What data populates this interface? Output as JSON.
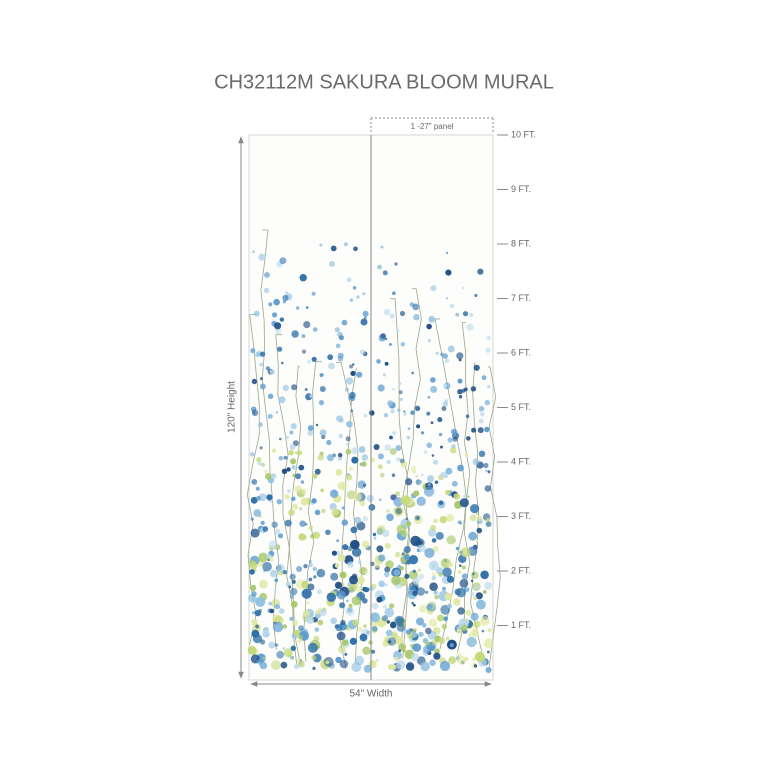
{
  "title": "CH32112M  SAKURA BLOOM MURAL",
  "panel_label": "1 -27\" panel",
  "height_label": "120\" Height",
  "width_label": "54\" Width",
  "ruler": [
    "10 FT.",
    "9 FT.",
    "8 FT.",
    "7 FT.",
    "6 FT.",
    "5 FT.",
    "4 FT.",
    "3 FT.",
    "2 FT.",
    "1 FT."
  ]
}
